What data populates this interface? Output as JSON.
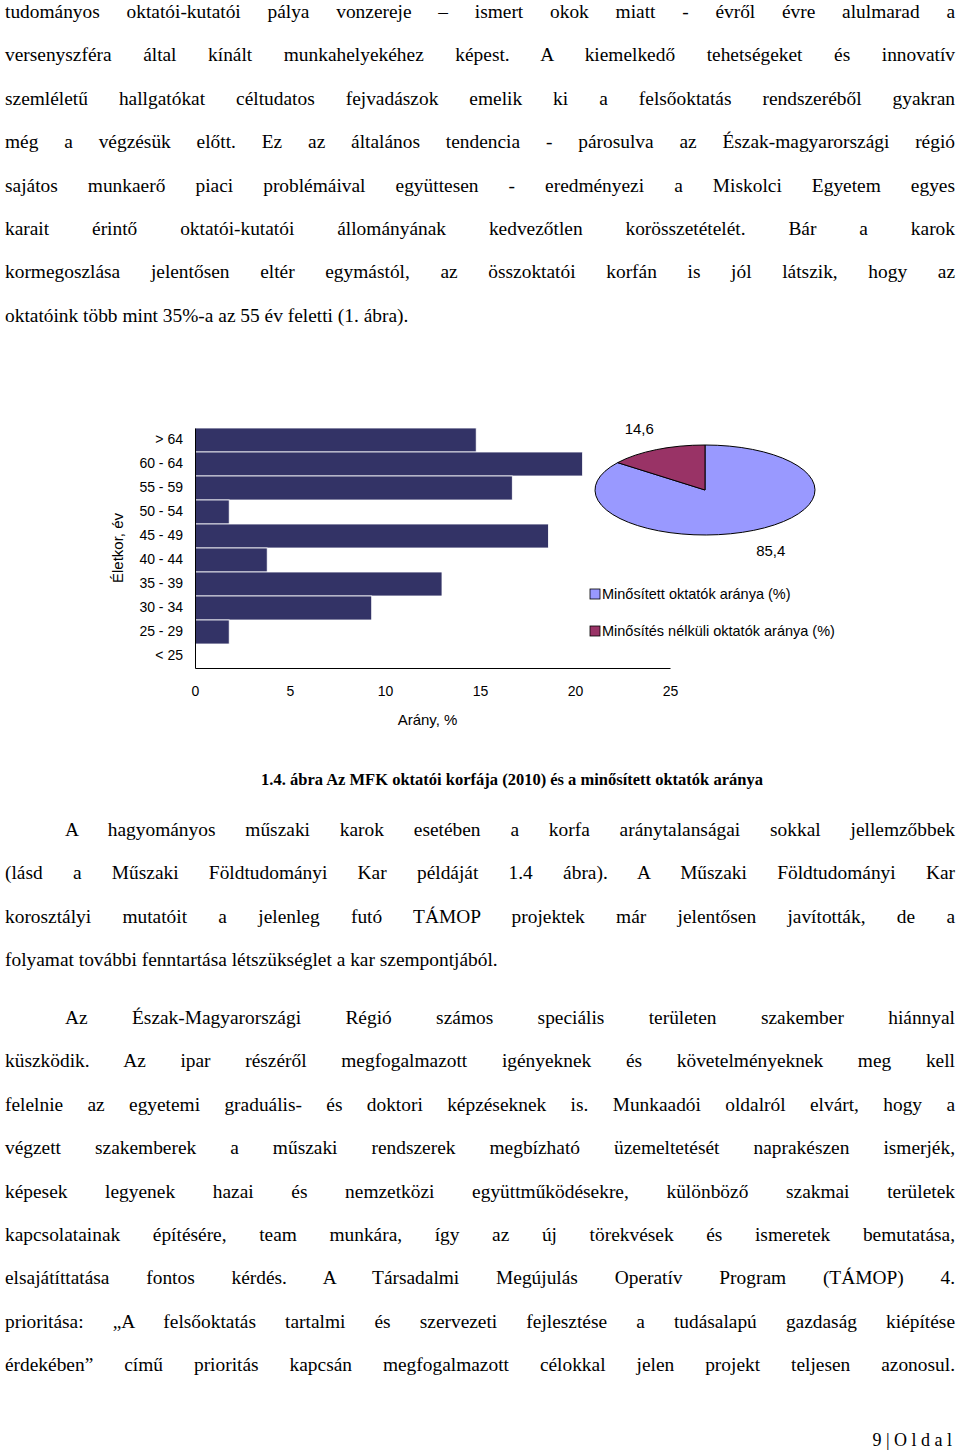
{
  "paragraphs": [
    {
      "lines": [
        "tudományos oktatói-kutatói pálya vonzereje – ismert okok miatt - évről évre alulmarad a",
        "versenyszféra által kínált munkahelyekéhez képest. A kiemelkedő tehetségeket és innovatív",
        "szemléletű hallgatókat céltudatos fejvadászok emelik ki a felsőoktatás rendszeréből gyakran",
        "még a végzésük előtt. Ez az általános tendencia - párosulva az Észak-magyarországi régió",
        "sajátos munkaerő piaci problémáival együttesen - eredményezi a Miskolci Egyetem egyes",
        "karait érintő oktatói-kutatói állományának kedvezőtlen korösszetételét. Bár a karok",
        "kormegoszlása jelentősen eltér egymástól, az összoktatói korfán is jól látszik, hogy az",
        "oktatóink több mint 35%-a az 55 év feletti (1. ábra)."
      ]
    },
    {
      "lines": [
        "A hagyományos műszaki karok esetében a korfa aránytalanságai sokkal jellemzőbbek",
        "(lásd a Műszaki Földtudományi Kar példáját 1.4 ábra). A Műszaki Földtudományi Kar",
        "korosztályi mutatóit a jelenleg futó TÁMOP projektek már jelentősen javították, de a",
        "folyamat további fenntartása létszükséglet a kar szempontjából."
      ]
    },
    {
      "lines": [
        "Az Észak-Magyarországi Régió számos speciális területen szakember hiánnyal",
        "küszködik. Az ipar részéről megfogalmazott igényeknek és követelményeknek meg kell",
        "felelnie az egyetemi graduális- és doktori képzéseknek is. Munkaadói oldalról elvárt, hogy a",
        "végzett szakemberek a műszaki rendszerek megbízható üzemeltetését naprakészen ismerjék,",
        "képesek legyenek hazai és nemzetközi együttműködésekre, különböző szakmai területek",
        "kapcsolatainak építésére, team munkára, így az új törekvések és ismeretek bemutatása,",
        "elsajátíttatása fontos kérdés. A Társadalmi Megújulás Operatív Program (TÁMOP) 4.",
        "prioritása: „A felsőoktatás tartalmi és szervezeti fejlesztése a tudásalapú gazdaság kiépítése",
        "érdekében” című prioritás kapcsán megfogalmazott célokkal jelen projekt teljesen azonosul."
      ]
    }
  ],
  "chart_data": [
    {
      "type": "bar",
      "orientation": "horizontal",
      "categories": [
        "> 64",
        "60 - 64",
        "55 - 59",
        "50 - 54",
        "45 - 49",
        "40 - 44",
        "35 - 39",
        "30 - 34",
        "25 - 29",
        "< 25"
      ],
      "values": [
        14.8,
        20.4,
        16.7,
        1.8,
        18.6,
        3.8,
        13.0,
        9.3,
        1.8,
        0
      ],
      "color": "#333366",
      "xlim": [
        0,
        25
      ],
      "xticks": [
        0,
        5,
        10,
        15,
        20,
        25
      ],
      "x_label": "Arány, %",
      "y_label": "Életkor, év"
    },
    {
      "type": "pie",
      "categories": [
        "Minősített oktatók aránya (%)",
        "Minősítés nélküli oktatók aránya (%)"
      ],
      "values": [
        85.4,
        14.6
      ],
      "value_labels": [
        "85,4",
        "14,6"
      ],
      "colors": [
        "#9999ff",
        "#993366"
      ],
      "data_labels": true,
      "legend": "bottom"
    }
  ],
  "caption": "1.4. ábra Az MFK oktatói korfája (2010) és a minősített oktatók aránya",
  "footer": "9 | O l d a l"
}
